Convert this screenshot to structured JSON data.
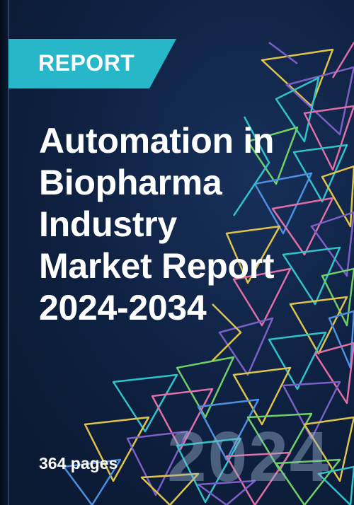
{
  "cover": {
    "badge_label": "REPORT",
    "title_lines": [
      "Automation in",
      "Biopharma",
      "Industry",
      "Market Report",
      "2024-2034"
    ],
    "pages_label": "364 pages",
    "year_watermark": "2024"
  },
  "colors": {
    "background": "#0f2243",
    "badge": "#27b7c9",
    "text": "#ffffff",
    "triangle_palette": [
      "#2fc3c9",
      "#e0c44a",
      "#7b5fc7",
      "#e06fa8",
      "#6fd06a",
      "#4d8fe0"
    ]
  },
  "icons": {
    "background_art": "geometric-triangles-pattern"
  }
}
